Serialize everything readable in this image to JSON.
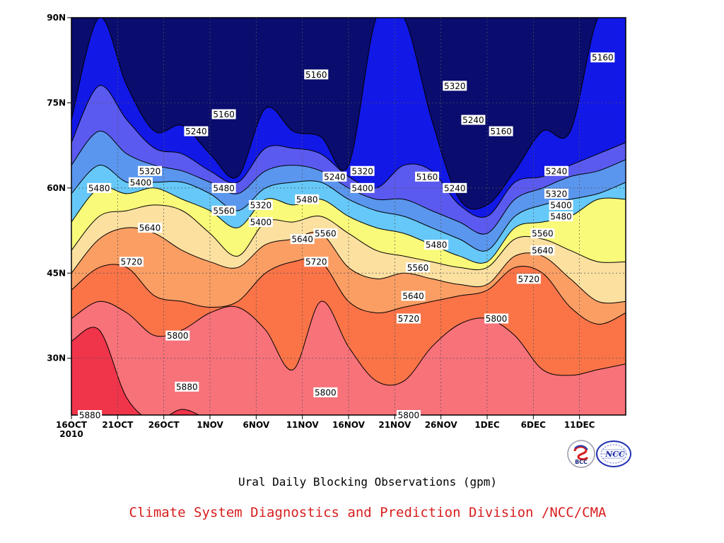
{
  "chart_data": {
    "type": "heatmap",
    "title": "Ural Daily Blocking Observations (gpm)",
    "credit": "Climate System Diagnostics and Prediction Division /NCC/CMA",
    "x_ticks": [
      "16OCT",
      "21OCT",
      "26OCT",
      "1NOV",
      "6NOV",
      "11NOV",
      "16NOV",
      "21NOV",
      "26NOV",
      "1DEC",
      "6DEC",
      "11DEC"
    ],
    "x_year_label": "2010",
    "y_ticks": [
      "30N",
      "45N",
      "60N",
      "75N",
      "90N"
    ],
    "xlim_days": [
      0,
      60
    ],
    "ylim_lat": [
      20,
      90
    ],
    "grid": "dotted",
    "contour_levels": [
      5160,
      5240,
      5320,
      5400,
      5480,
      5560,
      5640,
      5720,
      5800,
      5880
    ],
    "colors": [
      "#0a0c6e",
      "#1218e6",
      "#5a5af0",
      "#5a96ee",
      "#66c8f8",
      "#fafa7a",
      "#fce0a0",
      "#fa9e64",
      "#fa7448",
      "#f8727a",
      "#f0344a"
    ],
    "contour_lats": {
      "days": [
        0,
        3,
        6,
        9,
        12,
        15,
        18,
        21,
        24,
        27,
        30,
        33,
        36,
        39,
        42,
        45,
        48,
        51,
        54,
        57,
        60
      ],
      "5160": [
        72,
        90,
        78,
        70,
        71,
        66,
        62,
        74,
        70,
        69,
        64,
        90,
        90,
        72,
        58,
        57,
        63,
        70,
        70,
        90,
        90
      ],
      "5240": [
        68,
        78,
        72,
        67,
        66,
        63,
        61,
        67,
        67,
        66,
        62,
        60,
        64,
        63,
        57,
        55,
        61,
        62,
        64,
        66,
        68
      ],
      "5320": [
        64,
        70,
        66,
        64,
        63,
        61,
        59,
        63,
        64,
        63,
        60,
        58,
        58,
        56,
        54,
        52,
        58,
        60,
        62,
        63,
        65
      ],
      "5400": [
        59,
        64,
        61,
        61,
        61,
        59,
        56,
        60,
        61,
        61,
        58,
        56,
        55,
        53,
        51,
        49,
        55,
        57,
        58,
        59,
        61
      ],
      "5480": [
        54,
        60,
        59,
        60,
        58,
        56,
        53,
        58,
        57,
        58,
        55,
        53,
        52,
        50,
        48,
        47,
        53,
        54,
        55,
        58,
        58
      ],
      "5560": [
        49,
        55,
        56,
        57,
        56,
        52,
        48,
        54,
        54,
        55,
        52,
        49,
        48,
        47,
        46,
        46,
        51,
        51,
        49,
        47,
        47
      ],
      "5640": [
        45,
        51,
        53,
        52,
        49,
        47,
        46,
        50,
        51,
        52,
        46,
        44,
        45,
        44,
        43,
        43,
        48,
        48,
        44,
        40,
        40
      ],
      "5720": [
        42,
        46,
        46,
        41,
        40,
        39,
        40,
        45,
        47,
        47,
        40,
        38,
        39,
        40,
        41,
        42,
        46,
        45,
        39,
        36,
        38
      ],
      "5800": [
        37,
        40,
        38,
        34,
        35,
        38,
        39,
        35,
        28,
        40,
        32,
        26,
        26,
        32,
        36,
        37,
        34,
        28,
        27,
        28,
        29
      ],
      "5880": [
        33,
        35,
        23,
        19,
        21,
        19,
        17,
        17,
        17,
        17,
        17,
        17,
        17,
        17,
        17,
        17,
        17,
        17,
        17,
        17,
        17
      ]
    },
    "contour_labels": [
      {
        "text": "5160",
        "day": 26.5,
        "lat": 80
      },
      {
        "text": "5160",
        "day": 16.5,
        "lat": 73
      },
      {
        "text": "5160",
        "day": 38.5,
        "lat": 62
      },
      {
        "text": "5160",
        "day": 46.5,
        "lat": 70
      },
      {
        "text": "5160",
        "day": 57.5,
        "lat": 83
      },
      {
        "text": "5240",
        "day": 13.5,
        "lat": 70
      },
      {
        "text": "5240",
        "day": 28.5,
        "lat": 62
      },
      {
        "text": "5240",
        "day": 41.5,
        "lat": 60
      },
      {
        "text": "5240",
        "day": 43.5,
        "lat": 72
      },
      {
        "text": "5240",
        "day": 52.5,
        "lat": 63
      },
      {
        "text": "5320",
        "day": 8.5,
        "lat": 63
      },
      {
        "text": "5320",
        "day": 20.5,
        "lat": 57
      },
      {
        "text": "5320",
        "day": 31.5,
        "lat": 63
      },
      {
        "text": "5320",
        "day": 41.5,
        "lat": 78
      },
      {
        "text": "5320",
        "day": 52.5,
        "lat": 59
      },
      {
        "text": "5400",
        "day": 7.5,
        "lat": 61
      },
      {
        "text": "5400",
        "day": 20.5,
        "lat": 54
      },
      {
        "text": "5400",
        "day": 31.5,
        "lat": 60
      },
      {
        "text": "5400",
        "day": 53.0,
        "lat": 57
      },
      {
        "text": "5480",
        "day": 3.0,
        "lat": 60
      },
      {
        "text": "5480",
        "day": 16.5,
        "lat": 60
      },
      {
        "text": "5480",
        "day": 25.5,
        "lat": 58
      },
      {
        "text": "5480",
        "day": 39.5,
        "lat": 50
      },
      {
        "text": "5480",
        "day": 53.0,
        "lat": 55
      },
      {
        "text": "5560",
        "day": 16.5,
        "lat": 56
      },
      {
        "text": "5560",
        "day": 27.5,
        "lat": 52
      },
      {
        "text": "5560",
        "day": 37.5,
        "lat": 46
      },
      {
        "text": "5560",
        "day": 51.0,
        "lat": 52
      },
      {
        "text": "5640",
        "day": 8.5,
        "lat": 53
      },
      {
        "text": "5640",
        "day": 25.0,
        "lat": 51
      },
      {
        "text": "5640",
        "day": 37.0,
        "lat": 41
      },
      {
        "text": "5640",
        "day": 51.0,
        "lat": 49
      },
      {
        "text": "5720",
        "day": 6.5,
        "lat": 47
      },
      {
        "text": "5720",
        "day": 26.5,
        "lat": 47
      },
      {
        "text": "5720",
        "day": 36.5,
        "lat": 37
      },
      {
        "text": "5720",
        "day": 49.5,
        "lat": 44
      },
      {
        "text": "5800",
        "day": 11.5,
        "lat": 34
      },
      {
        "text": "5800",
        "day": 27.5,
        "lat": 24
      },
      {
        "text": "5800",
        "day": 36.5,
        "lat": 20
      },
      {
        "text": "5800",
        "day": 46.0,
        "lat": 37
      },
      {
        "text": "5880",
        "day": 2.0,
        "lat": 20
      },
      {
        "text": "5880",
        "day": 12.5,
        "lat": 25
      }
    ]
  },
  "logos": {
    "left": {
      "name": "bcc-logo",
      "text": "BCC"
    },
    "right": {
      "name": "ncc-logo",
      "text": "NCC"
    }
  }
}
